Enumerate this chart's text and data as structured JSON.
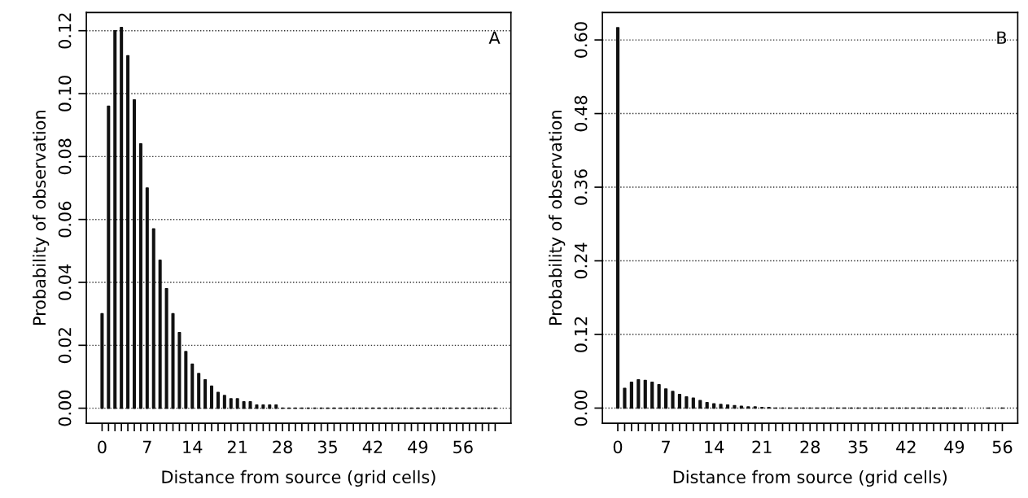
{
  "chart_data": [
    {
      "type": "bar",
      "xlabel": "Distance from source (grid cells)",
      "ylabel": "Probability of observation",
      "annotations": [
        "A"
      ],
      "grid": "y",
      "line_style": "dotted",
      "x": [
        0,
        1,
        2,
        3,
        4,
        5,
        6,
        7,
        8,
        9,
        10,
        11,
        12,
        13,
        14,
        15,
        16,
        17,
        18,
        19,
        20,
        21,
        22,
        23,
        24,
        25,
        26,
        27,
        28,
        29,
        30,
        31,
        32,
        33,
        34,
        35,
        36,
        37,
        38,
        39,
        40,
        41,
        42,
        43,
        44,
        45,
        46,
        47,
        48,
        49,
        50,
        51,
        52,
        53,
        54,
        55,
        56,
        57,
        58,
        59,
        60,
        61
      ],
      "values": [
        0.03,
        0.096,
        0.12,
        0.121,
        0.112,
        0.098,
        0.084,
        0.07,
        0.057,
        0.047,
        0.038,
        0.03,
        0.024,
        0.018,
        0.014,
        0.011,
        0.009,
        0.007,
        0.005,
        0.004,
        0.003,
        0.003,
        0.002,
        0.002,
        0.001,
        0.001,
        0.001,
        0.001,
        0,
        0,
        0,
        0,
        0,
        0,
        0,
        0,
        0,
        0,
        0,
        0,
        0,
        0,
        0,
        0,
        0,
        0,
        0,
        0,
        0,
        0,
        0,
        0,
        0,
        0,
        0,
        0,
        0,
        0,
        0,
        0,
        0,
        0
      ],
      "color": "#111111",
      "xlim": [
        -2.44,
        63.44
      ],
      "ylim": [
        -0.0048,
        0.1258
      ],
      "yticks": [
        {
          "value": 0,
          "label": "0.00"
        },
        {
          "value": 0.02,
          "label": "0.02"
        },
        {
          "value": 0.04,
          "label": "0.04"
        },
        {
          "value": 0.06,
          "label": "0.06"
        },
        {
          "value": 0.08,
          "label": "0.08"
        },
        {
          "value": 0.1,
          "label": "0.10"
        },
        {
          "value": 0.12,
          "label": "0.12"
        }
      ],
      "xticks": [
        0,
        {
          "value": 1,
          "label": null
        },
        {
          "value": 2,
          "label": null
        },
        {
          "value": 3,
          "label": null
        },
        {
          "value": 4,
          "label": null
        },
        {
          "value": 5,
          "label": null
        },
        {
          "value": 6,
          "label": null
        },
        7,
        {
          "value": 8,
          "label": null
        },
        {
          "value": 9,
          "label": null
        },
        {
          "value": 10,
          "label": null
        },
        {
          "value": 11,
          "label": null
        },
        {
          "value": 12,
          "label": null
        },
        {
          "value": 13,
          "label": null
        },
        14,
        {
          "value": 15,
          "label": null
        },
        {
          "value": 16,
          "label": null
        },
        {
          "value": 17,
          "label": null
        },
        {
          "value": 18,
          "label": null
        },
        {
          "value": 19,
          "label": null
        },
        {
          "value": 20,
          "label": null
        },
        21,
        {
          "value": 22,
          "label": null
        },
        {
          "value": 23,
          "label": null
        },
        {
          "value": 24,
          "label": null
        },
        {
          "value": 25,
          "label": null
        },
        {
          "value": 26,
          "label": null
        },
        {
          "value": 27,
          "label": null
        },
        28,
        {
          "value": 29,
          "label": null
        },
        {
          "value": 30,
          "label": null
        },
        {
          "value": 31,
          "label": null
        },
        {
          "value": 32,
          "label": null
        },
        {
          "value": 33,
          "label": null
        },
        {
          "value": 34,
          "label": null
        },
        35,
        {
          "value": 36,
          "label": null
        },
        {
          "value": 37,
          "label": null
        },
        {
          "value": 38,
          "label": null
        },
        {
          "value": 39,
          "label": null
        },
        {
          "value": 40,
          "label": null
        },
        {
          "value": 41,
          "label": null
        },
        42,
        {
          "value": 43,
          "label": null
        },
        {
          "value": 44,
          "label": null
        },
        {
          "value": 45,
          "label": null
        },
        {
          "value": 46,
          "label": null
        },
        {
          "value": 47,
          "label": null
        },
        {
          "value": 48,
          "label": null
        },
        49,
        {
          "value": 50,
          "label": null
        },
        {
          "value": 51,
          "label": null
        },
        {
          "value": 52,
          "label": null
        },
        {
          "value": 53,
          "label": null
        },
        {
          "value": 54,
          "label": null
        },
        {
          "value": 55,
          "label": null
        },
        56,
        {
          "value": 57,
          "label": null
        },
        {
          "value": 58,
          "label": null
        },
        {
          "value": 59,
          "label": null
        },
        {
          "value": 60,
          "label": null
        },
        {
          "value": 61,
          "label": null
        }
      ]
    },
    {
      "type": "bar",
      "xlabel": "Distance from source (grid cells)",
      "ylabel": "Probability of observation",
      "annotations": [
        "B"
      ],
      "grid": "y",
      "line_style": "dotted",
      "x": [
        0,
        1,
        2,
        3,
        4,
        5,
        6,
        7,
        8,
        9,
        10,
        11,
        12,
        13,
        14,
        15,
        16,
        17,
        18,
        19,
        20,
        21,
        22,
        23,
        24,
        25,
        26,
        27,
        28,
        29,
        30,
        31,
        32,
        33,
        34,
        35,
        36,
        37,
        38,
        39,
        40,
        41,
        42,
        43,
        44,
        45,
        46,
        47,
        48,
        49,
        50,
        54,
        56
      ],
      "values": [
        0.62,
        0.032,
        0.042,
        0.046,
        0.045,
        0.042,
        0.038,
        0.031,
        0.027,
        0.022,
        0.018,
        0.016,
        0.012,
        0.009,
        0.007,
        0.006,
        0.005,
        0.004,
        0.003,
        0.002,
        0.002,
        0.001,
        0.001,
        0,
        0,
        0,
        0,
        0,
        0,
        0,
        0,
        0,
        0,
        0,
        0,
        0,
        0,
        0,
        0,
        0,
        0,
        0,
        0,
        0,
        0,
        0,
        0,
        0,
        0,
        0,
        0,
        0,
        0
      ],
      "color": "#111111",
      "xlim": [
        -2.24,
        58.24
      ],
      "ylim": [
        -0.0248,
        0.6448
      ],
      "yticks": [
        {
          "value": 0,
          "label": "0.00"
        },
        {
          "value": 0.12,
          "label": "0.12"
        },
        {
          "value": 0.24,
          "label": "0.24"
        },
        {
          "value": 0.36,
          "label": "0.36"
        },
        {
          "value": 0.48,
          "label": "0.48"
        },
        {
          "value": 0.6,
          "label": "0.60"
        }
      ],
      "xticks": [
        0,
        {
          "value": 1,
          "label": null
        },
        {
          "value": 2,
          "label": null
        },
        {
          "value": 3,
          "label": null
        },
        {
          "value": 4,
          "label": null
        },
        {
          "value": 5,
          "label": null
        },
        {
          "value": 6,
          "label": null
        },
        7,
        {
          "value": 8,
          "label": null
        },
        {
          "value": 9,
          "label": null
        },
        {
          "value": 10,
          "label": null
        },
        {
          "value": 11,
          "label": null
        },
        {
          "value": 12,
          "label": null
        },
        {
          "value": 13,
          "label": null
        },
        14,
        {
          "value": 15,
          "label": null
        },
        {
          "value": 16,
          "label": null
        },
        {
          "value": 17,
          "label": null
        },
        {
          "value": 18,
          "label": null
        },
        {
          "value": 19,
          "label": null
        },
        {
          "value": 20,
          "label": null
        },
        21,
        {
          "value": 22,
          "label": null
        },
        {
          "value": 23,
          "label": null
        },
        {
          "value": 24,
          "label": null
        },
        {
          "value": 25,
          "label": null
        },
        {
          "value": 26,
          "label": null
        },
        {
          "value": 27,
          "label": null
        },
        28,
        {
          "value": 29,
          "label": null
        },
        {
          "value": 30,
          "label": null
        },
        {
          "value": 31,
          "label": null
        },
        {
          "value": 32,
          "label": null
        },
        {
          "value": 33,
          "label": null
        },
        {
          "value": 34,
          "label": null
        },
        35,
        {
          "value": 36,
          "label": null
        },
        {
          "value": 37,
          "label": null
        },
        {
          "value": 38,
          "label": null
        },
        {
          "value": 39,
          "label": null
        },
        {
          "value": 40,
          "label": null
        },
        {
          "value": 41,
          "label": null
        },
        42,
        {
          "value": 43,
          "label": null
        },
        {
          "value": 44,
          "label": null
        },
        {
          "value": 45,
          "label": null
        },
        {
          "value": 46,
          "label": null
        },
        {
          "value": 47,
          "label": null
        },
        {
          "value": 48,
          "label": null
        },
        49,
        {
          "value": 50,
          "label": null
        },
        {
          "value": 51,
          "label": null
        },
        {
          "value": 52,
          "label": null
        },
        {
          "value": 53,
          "label": null
        },
        {
          "value": 54,
          "label": null
        },
        {
          "value": 55,
          "label": null
        },
        56
      ]
    }
  ]
}
